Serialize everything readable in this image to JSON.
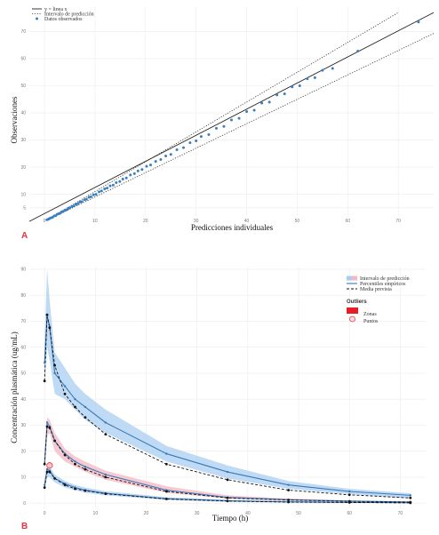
{
  "panels": {
    "a": {
      "letter": "A"
    },
    "b": {
      "letter": "B"
    }
  },
  "chart_data": [
    {
      "type": "scatter",
      "xlabel": "Predicciones individuales",
      "ylabel": "Observaciones",
      "xlim": [
        -3,
        77
      ],
      "ylim": [
        2,
        79
      ],
      "xticks": [
        0,
        10,
        20,
        30,
        40,
        50,
        60,
        70
      ],
      "yticks": [
        5,
        10,
        20,
        30,
        40,
        50,
        60,
        70
      ],
      "grid": true,
      "legend_position": "top-left",
      "legend": [
        {
          "label": "y = linea x",
          "style": "solid-line"
        },
        {
          "label": "Intervalo de predicción",
          "style": "dotted-line"
        },
        {
          "label": "Datos observados",
          "style": "point"
        }
      ],
      "identity_line": {
        "x": [
          -3,
          77
        ],
        "y": [
          -3,
          77
        ]
      },
      "prediction_interval": {
        "lower_factor": 0.9,
        "upper_factor": 1.1
      },
      "points": [
        [
          0.5,
          0.6
        ],
        [
          0.8,
          0.8
        ],
        [
          1.0,
          1.1
        ],
        [
          1.3,
          1.3
        ],
        [
          1.6,
          1.5
        ],
        [
          1.9,
          2.0
        ],
        [
          2.2,
          2.1
        ],
        [
          2.5,
          2.6
        ],
        [
          2.8,
          2.8
        ],
        [
          3.1,
          3.0
        ],
        [
          3.4,
          3.5
        ],
        [
          3.7,
          3.6
        ],
        [
          4.0,
          4.1
        ],
        [
          4.3,
          4.2
        ],
        [
          4.7,
          4.8
        ],
        [
          5.0,
          4.9
        ],
        [
          5.4,
          5.5
        ],
        [
          5.8,
          5.7
        ],
        [
          6.2,
          6.3
        ],
        [
          6.6,
          6.5
        ],
        [
          7.0,
          7.1
        ],
        [
          7.4,
          7.3
        ],
        [
          7.9,
          8.0
        ],
        [
          8.3,
          8.2
        ],
        [
          8.8,
          8.9
        ],
        [
          9.2,
          9.1
        ],
        [
          9.7,
          9.8
        ],
        [
          10.2,
          10.0
        ],
        [
          10.8,
          10.9
        ],
        [
          11.3,
          11.2
        ],
        [
          11.9,
          12.0
        ],
        [
          12.4,
          12.3
        ],
        [
          13.0,
          13.1
        ],
        [
          13.6,
          13.4
        ],
        [
          14.2,
          14.3
        ],
        [
          14.9,
          14.7
        ],
        [
          15.5,
          15.6
        ],
        [
          16.2,
          16.0
        ],
        [
          17.0,
          17.1
        ],
        [
          17.8,
          17.6
        ],
        [
          18.5,
          18.6
        ],
        [
          19.3,
          19.1
        ],
        [
          20.2,
          20.3
        ],
        [
          21.0,
          20.8
        ],
        [
          22.0,
          22.1
        ],
        [
          23.0,
          22.8
        ],
        [
          24.0,
          24.1
        ],
        [
          25.0,
          24.7
        ],
        [
          26.2,
          26.4
        ],
        [
          27.5,
          27.2
        ],
        [
          28.8,
          29.0
        ],
        [
          30.0,
          29.7
        ],
        [
          31.0,
          31.3
        ],
        [
          32.5,
          32.0
        ],
        [
          34.0,
          34.3
        ],
        [
          35.5,
          35.0
        ],
        [
          37.0,
          37.4
        ],
        [
          38.5,
          38.0
        ],
        [
          40.0,
          40.5
        ],
        [
          41.5,
          41.0
        ],
        [
          43.0,
          43.6
        ],
        [
          44.5,
          44.0
        ],
        [
          46.0,
          46.6
        ],
        [
          47.5,
          47.0
        ],
        [
          49.0,
          49.6
        ],
        [
          50.5,
          50.0
        ],
        [
          52.0,
          52.6
        ],
        [
          53.5,
          53.0
        ],
        [
          55.0,
          55.7
        ],
        [
          57.0,
          56.4
        ],
        [
          62.0,
          62.8
        ],
        [
          74.0,
          73.5
        ]
      ]
    },
    {
      "type": "line",
      "xlabel": "Tiempo (h)",
      "ylabel": "Concentración plasmática (ug/mL)",
      "xlim": [
        -3,
        75
      ],
      "ylim": [
        -2,
        91
      ],
      "xticks": [
        0,
        10,
        20,
        30,
        40,
        50,
        60,
        70
      ],
      "yticks": [
        0,
        10,
        20,
        30,
        40,
        50,
        60,
        70,
        80,
        90
      ],
      "grid": true,
      "legend_position": "top-right",
      "legend": [
        {
          "label": "Intervalo de predicción",
          "style": "band"
        },
        {
          "label": "Percentiles empíricos",
          "style": "solid-line"
        },
        {
          "label": "Media prevista",
          "style": "dashed-line"
        }
      ],
      "outliers_legend": {
        "title": "Outliers",
        "items": [
          {
            "label": "Zonas",
            "style": "red-rect"
          },
          {
            "label": "Puntos",
            "style": "red-circle"
          }
        ]
      },
      "x": [
        0,
        0.5,
        1,
        2,
        4,
        6,
        8,
        12,
        24,
        36,
        48,
        60,
        72
      ],
      "series": [
        {
          "percentile": "upper",
          "band_color": "#a9cdf0",
          "band_lower": [
            45,
            60,
            55,
            42,
            40,
            36,
            32,
            27,
            16,
            9.5,
            5.5,
            3.5,
            1.8
          ],
          "band_upper": [
            62,
            90,
            78,
            58,
            52,
            46,
            42,
            36,
            22,
            14.5,
            8.5,
            5.5,
            3.8
          ],
          "empirical": [
            54,
            72,
            68,
            50,
            45,
            40,
            37,
            31,
            19,
            12,
            7,
            4.5,
            3
          ],
          "predicted": [
            47,
            72.5,
            67.5,
            53,
            42,
            37,
            33,
            26.5,
            15,
            9,
            5,
            3.2,
            2
          ]
        },
        {
          "percentile": "median",
          "band_color": "#f4b8c2",
          "band_lower": [
            12,
            26,
            27,
            20,
            16,
            14,
            12,
            9,
            4,
            1.7,
            1.0,
            0.5,
            0.3
          ],
          "band_upper": [
            18,
            33,
            32,
            27,
            21,
            18,
            16,
            12.5,
            6.5,
            3.0,
            1.8,
            1.0,
            0.6
          ],
          "empirical": [
            15,
            31,
            29.5,
            24,
            19,
            16,
            14,
            11,
            5,
            2.2,
            1.3,
            0.8,
            0.4
          ],
          "predicted": [
            15,
            29.5,
            29,
            24,
            18.5,
            15,
            13,
            10,
            4.5,
            2.0,
            1.2,
            0.7,
            0.4
          ]
        },
        {
          "percentile": "lower",
          "band_color": "#a9cdf0",
          "band_lower": [
            5,
            10,
            10,
            8,
            6,
            5,
            4,
            3,
            1.2,
            0.5,
            0.2,
            0.1,
            0.05
          ],
          "band_upper": [
            9,
            14,
            14,
            11,
            8.5,
            7,
            6,
            4.6,
            2.3,
            1.3,
            0.8,
            0.5,
            0.3
          ],
          "empirical": [
            7,
            13,
            12.5,
            9.5,
            7.5,
            6,
            5,
            3.8,
            1.7,
            0.9,
            0.5,
            0.3,
            0.15
          ],
          "predicted": [
            6,
            12,
            12,
            9.5,
            7,
            5.5,
            4.8,
            3.6,
            1.6,
            0.8,
            0.4,
            0.25,
            0.1
          ]
        }
      ],
      "outlier_points": [
        {
          "x": 1,
          "y": 14.5
        }
      ]
    }
  ]
}
